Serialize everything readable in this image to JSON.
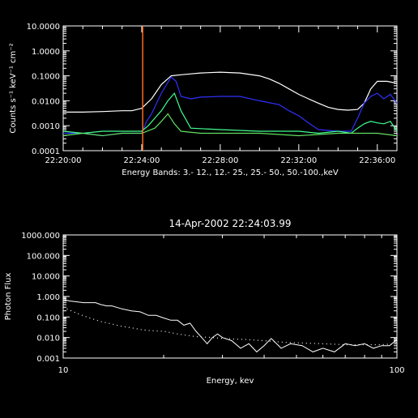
{
  "colors": {
    "background": "#000000",
    "axes": "#ffffff",
    "band_3_12": "#ffffff",
    "band_12_25": "#3030ff",
    "band_25_50": "#40ff90",
    "band_50_100": "#60e060",
    "time_marker": "#ff6a1a"
  },
  "chart_data": [
    {
      "type": "line",
      "title": "",
      "xlabel": "Energy Bands:  3.- 12., 12.- 25., 25.- 50., 50.-100.,keV",
      "ylabel": "Counts s⁻¹ keV⁻¹ cm⁻²",
      "y_scale": "log",
      "ylim": [
        0.0001,
        10
      ],
      "xlim": [
        "22:20:00",
        "22:37:00"
      ],
      "x_ticks": [
        "22:20:00",
        "22:24:00",
        "22:28:00",
        "22:32:00",
        "22:36:00"
      ],
      "y_ticks": [
        "10.0000",
        "1.0000",
        "0.1000",
        "0.0100",
        "0.0010",
        "0.0001"
      ],
      "marker_time": "22:24:03",
      "series": [
        {
          "name": "3.- 12.",
          "x": [
            "22:20:00",
            "22:21:00",
            "22:22:00",
            "22:23:00",
            "22:23:30",
            "22:24:00",
            "22:24:30",
            "22:25:00",
            "22:25:30",
            "22:26:00",
            "22:26:30",
            "22:27:00",
            "22:28:00",
            "22:29:00",
            "22:30:00",
            "22:30:30",
            "22:31:00",
            "22:31:30",
            "22:32:00",
            "22:32:30",
            "22:33:00",
            "22:33:30",
            "22:34:00",
            "22:34:30",
            "22:35:00",
            "22:35:20",
            "22:35:40",
            "22:36:00",
            "22:36:30",
            "22:37:00"
          ],
          "values": [
            0.0035,
            0.0035,
            0.0037,
            0.004,
            0.004,
            0.005,
            0.012,
            0.045,
            0.1,
            0.11,
            0.12,
            0.13,
            0.14,
            0.13,
            0.1,
            0.075,
            0.05,
            0.03,
            0.018,
            0.012,
            0.008,
            0.0055,
            0.0045,
            0.0042,
            0.0045,
            0.008,
            0.03,
            0.06,
            0.06,
            0.05
          ]
        },
        {
          "name": "12.- 25.",
          "x": [
            "22:20:00",
            "22:21:00",
            "22:22:00",
            "22:23:00",
            "22:24:00",
            "22:24:15",
            "22:24:30",
            "22:25:00",
            "22:25:30",
            "22:25:45",
            "22:26:00",
            "22:26:30",
            "22:27:00",
            "22:28:00",
            "22:29:00",
            "22:30:00",
            "22:31:00",
            "22:31:30",
            "22:32:00",
            "22:32:30",
            "22:33:00",
            "22:34:00",
            "22:34:40",
            "22:35:00",
            "22:35:20",
            "22:35:40",
            "22:36:00",
            "22:36:20",
            "22:36:40",
            "22:37:00"
          ],
          "values": [
            0.0005,
            0.0005,
            0.0004,
            0.0005,
            0.0005,
            0.0015,
            0.003,
            0.02,
            0.09,
            0.06,
            0.015,
            0.012,
            0.014,
            0.015,
            0.015,
            0.01,
            0.007,
            0.004,
            0.0025,
            0.0013,
            0.0007,
            0.0006,
            0.0006,
            0.002,
            0.008,
            0.015,
            0.02,
            0.012,
            0.018,
            0.008
          ]
        },
        {
          "name": "25.- 50.",
          "x": [
            "22:20:00",
            "22:21:00",
            "22:22:00",
            "22:23:00",
            "22:24:00",
            "22:24:20",
            "22:24:40",
            "22:25:00",
            "22:25:20",
            "22:25:40",
            "22:26:00",
            "22:26:30",
            "22:28:00",
            "22:30:00",
            "22:32:00",
            "22:33:00",
            "22:34:00",
            "22:34:40",
            "22:35:00",
            "22:35:20",
            "22:35:40",
            "22:36:00",
            "22:36:20",
            "22:36:40",
            "22:37:00"
          ],
          "values": [
            0.0006,
            0.0005,
            0.0006,
            0.0006,
            0.0006,
            0.001,
            0.002,
            0.004,
            0.01,
            0.02,
            0.004,
            0.0008,
            0.0007,
            0.0006,
            0.0006,
            0.0005,
            0.0006,
            0.0005,
            0.0008,
            0.0012,
            0.0015,
            0.0013,
            0.0012,
            0.0015,
            0.0006
          ]
        },
        {
          "name": "50.-100.",
          "x": [
            "22:20:00",
            "22:21:00",
            "22:22:00",
            "22:23:00",
            "22:24:00",
            "22:24:40",
            "22:25:00",
            "22:25:20",
            "22:25:40",
            "22:26:00",
            "22:27:00",
            "22:28:00",
            "22:30:00",
            "22:32:00",
            "22:34:00",
            "22:35:00",
            "22:36:00",
            "22:37:00"
          ],
          "values": [
            0.0004,
            0.0005,
            0.0004,
            0.0005,
            0.0005,
            0.0008,
            0.0015,
            0.003,
            0.0012,
            0.0006,
            0.0005,
            0.0005,
            0.0005,
            0.0004,
            0.0005,
            0.0005,
            0.0005,
            0.0004
          ]
        }
      ]
    },
    {
      "type": "line",
      "title": "14-Apr-2002 22:24:03.99",
      "xlabel": "Energy, kev",
      "ylabel": "Photon Flux",
      "x_scale": "log",
      "y_scale": "log",
      "xlim": [
        10,
        100
      ],
      "ylim": [
        0.001,
        1000
      ],
      "x_ticks": [
        "10",
        "100"
      ],
      "y_ticks": [
        "1000.000",
        "100.000",
        "10.000",
        "1.000",
        "0.100",
        "0.010",
        "0.001"
      ],
      "series": [
        {
          "name": "",
          "style": "solid",
          "x": [
            10,
            10.5,
            11,
            11.5,
            12,
            12.5,
            13,
            13.5,
            14,
            15,
            16,
            17,
            18,
            19,
            20,
            21,
            22,
            23,
            24,
            25,
            26,
            27,
            28,
            29,
            30,
            32,
            34,
            36,
            38,
            40,
            42,
            45,
            48,
            52,
            56,
            60,
            65,
            70,
            75,
            80,
            85,
            90,
            95,
            100
          ],
          "values": [
            0.7,
            0.6,
            0.55,
            0.5,
            0.5,
            0.5,
            0.4,
            0.35,
            0.35,
            0.25,
            0.2,
            0.18,
            0.12,
            0.12,
            0.09,
            0.07,
            0.07,
            0.04,
            0.05,
            0.02,
            0.01,
            0.005,
            0.01,
            0.015,
            0.01,
            0.007,
            0.003,
            0.005,
            0.002,
            0.004,
            0.009,
            0.003,
            0.005,
            0.004,
            0.002,
            0.003,
            0.002,
            0.005,
            0.004,
            0.005,
            0.003,
            0.004,
            0.004,
            0.008
          ]
        },
        {
          "name": "",
          "style": "dotted",
          "x": [
            10,
            11,
            12,
            13,
            14,
            15,
            16,
            17,
            18,
            20,
            22,
            25,
            28,
            30,
            35,
            40,
            45,
            50,
            60,
            70,
            80,
            90,
            100
          ],
          "values": [
            0.3,
            0.15,
            0.09,
            0.06,
            0.045,
            0.035,
            0.03,
            0.025,
            0.022,
            0.02,
            0.015,
            0.011,
            0.01,
            0.009,
            0.008,
            0.007,
            0.006,
            0.0055,
            0.005,
            0.0045,
            0.0045,
            0.0045,
            0.005
          ]
        }
      ]
    }
  ]
}
